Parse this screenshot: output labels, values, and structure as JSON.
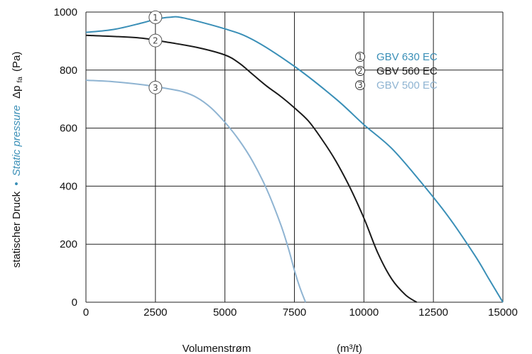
{
  "chart_data": {
    "type": "line",
    "xlabel": "Volumenstrøm",
    "xunit": "(m³/t)",
    "ylabel": {
      "part1": "statischer Druck",
      "separator": "•",
      "part2": "Static pressure",
      "symbol": "Δp",
      "subscript": "fa",
      "unit": "(Pa)"
    },
    "xlim": [
      0,
      15000
    ],
    "ylim": [
      0,
      1000
    ],
    "xticks": [
      "0",
      "2500",
      "5000",
      "7500",
      "10000",
      "12500",
      "15000"
    ],
    "yticks": [
      "0",
      "200",
      "400",
      "600",
      "800",
      "1000"
    ],
    "xgrid": [
      0,
      2500,
      5000,
      7500,
      10000,
      12500,
      15000
    ],
    "ygrid": [
      0,
      200,
      400,
      600,
      800,
      1000
    ],
    "grid": true,
    "legend_position": "top-right",
    "series": [
      {
        "marker": "1",
        "name": "GBV 630 EC",
        "color": "#3a8fb7",
        "marker_at": [
          2500,
          982
        ],
        "points": [
          [
            0,
            930
          ],
          [
            1000,
            940
          ],
          [
            2000,
            962
          ],
          [
            2500,
            975
          ],
          [
            3000,
            982
          ],
          [
            3500,
            980
          ],
          [
            5000,
            942
          ],
          [
            6000,
            905
          ],
          [
            7500,
            813
          ],
          [
            9000,
            700
          ],
          [
            10000,
            612
          ],
          [
            11000,
            530
          ],
          [
            12000,
            420
          ],
          [
            13000,
            300
          ],
          [
            14000,
            160
          ],
          [
            14500,
            80
          ],
          [
            15000,
            0
          ]
        ]
      },
      {
        "marker": "2",
        "name": "GBV 560 EC",
        "color": "#1a1a1a",
        "marker_at": [
          2500,
          902
        ],
        "points": [
          [
            0,
            920
          ],
          [
            1000,
            916
          ],
          [
            2000,
            910
          ],
          [
            3000,
            895
          ],
          [
            4000,
            878
          ],
          [
            5000,
            852
          ],
          [
            5500,
            825
          ],
          [
            6000,
            785
          ],
          [
            6500,
            745
          ],
          [
            7000,
            710
          ],
          [
            7500,
            670
          ],
          [
            8000,
            625
          ],
          [
            8500,
            560
          ],
          [
            9000,
            485
          ],
          [
            9500,
            395
          ],
          [
            10000,
            290
          ],
          [
            10500,
            170
          ],
          [
            11000,
            80
          ],
          [
            11500,
            25
          ],
          [
            11900,
            0
          ]
        ]
      },
      {
        "marker": "3",
        "name": "GBV 500 EC",
        "color": "#8fb4d2",
        "marker_at": [
          2500,
          740
        ],
        "points": [
          [
            0,
            765
          ],
          [
            1000,
            760
          ],
          [
            2000,
            750
          ],
          [
            3000,
            735
          ],
          [
            3500,
            725
          ],
          [
            4000,
            705
          ],
          [
            4500,
            670
          ],
          [
            5000,
            620
          ],
          [
            5500,
            560
          ],
          [
            6000,
            485
          ],
          [
            6500,
            390
          ],
          [
            7000,
            270
          ],
          [
            7300,
            180
          ],
          [
            7500,
            110
          ],
          [
            7700,
            50
          ],
          [
            7900,
            0
          ]
        ]
      }
    ]
  }
}
